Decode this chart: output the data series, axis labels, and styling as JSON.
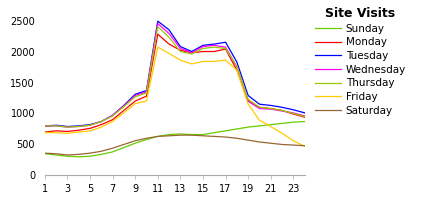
{
  "title": "Site Visits",
  "hours": [
    1,
    2,
    3,
    4,
    5,
    6,
    7,
    8,
    9,
    10,
    11,
    12,
    13,
    14,
    15,
    16,
    17,
    18,
    19,
    20,
    21,
    22,
    23,
    24
  ],
  "series": {
    "Sunday": [
      350,
      330,
      310,
      300,
      310,
      340,
      380,
      450,
      520,
      580,
      630,
      660,
      670,
      660,
      660,
      690,
      720,
      750,
      780,
      800,
      820,
      840,
      860,
      870
    ],
    "Monday": [
      700,
      720,
      710,
      730,
      760,
      820,
      900,
      1050,
      1200,
      1280,
      2280,
      2120,
      2020,
      1980,
      2000,
      2000,
      2040,
      1700,
      1200,
      1100,
      1080,
      1050,
      990,
      940
    ],
    "Tuesday": [
      800,
      810,
      790,
      800,
      820,
      870,
      970,
      1130,
      1310,
      1370,
      2490,
      2350,
      2080,
      2000,
      2100,
      2120,
      2150,
      1830,
      1290,
      1150,
      1130,
      1100,
      1060,
      1010
    ],
    "Wednesday": [
      790,
      800,
      780,
      790,
      810,
      870,
      970,
      1120,
      1290,
      1350,
      2450,
      2290,
      2050,
      1980,
      2080,
      2100,
      2070,
      1750,
      1200,
      1080,
      1070,
      1040,
      1010,
      960
    ],
    "Thursday": [
      800,
      800,
      780,
      790,
      810,
      870,
      960,
      1110,
      1270,
      1330,
      2400,
      2230,
      2000,
      1960,
      2050,
      2070,
      2050,
      1760,
      1230,
      1100,
      1080,
      1050,
      1000,
      950
    ],
    "Friday": [
      690,
      690,
      680,
      700,
      720,
      780,
      870,
      1010,
      1160,
      1200,
      2070,
      1970,
      1860,
      1800,
      1840,
      1840,
      1860,
      1700,
      1150,
      890,
      790,
      680,
      560,
      470
    ],
    "Saturday": [
      360,
      350,
      330,
      340,
      360,
      390,
      440,
      500,
      560,
      600,
      630,
      640,
      650,
      650,
      640,
      630,
      620,
      600,
      570,
      540,
      520,
      500,
      490,
      480
    ]
  },
  "colors": {
    "Sunday": "#66cc00",
    "Monday": "#ff0000",
    "Tuesday": "#0000ff",
    "Wednesday": "#ff00ff",
    "Thursday": "#99cc00",
    "Friday": "#ffcc00",
    "Saturday": "#996633"
  },
  "xlim": [
    1,
    24
  ],
  "ylim": [
    0,
    2700
  ],
  "xticks": [
    1,
    3,
    5,
    7,
    9,
    11,
    13,
    15,
    17,
    19,
    21,
    23
  ],
  "yticks": [
    0,
    500,
    1000,
    1500,
    2000,
    2500
  ],
  "legend_title_fontsize": 9,
  "legend_fontsize": 7.5,
  "tick_fontsize": 7,
  "fig_width": 4.48,
  "fig_height": 2.04,
  "dpi": 100
}
